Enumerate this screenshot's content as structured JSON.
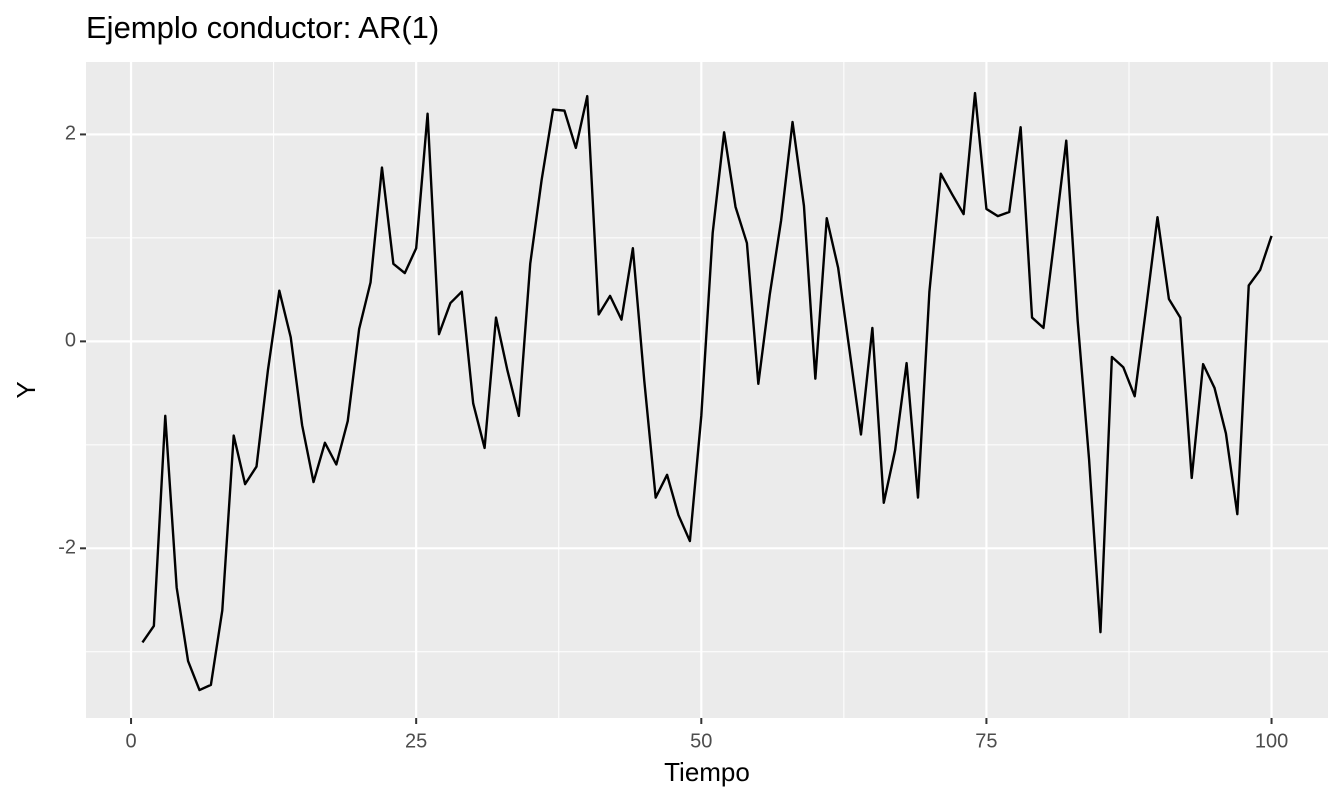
{
  "chart_data": {
    "type": "line",
    "title": "Ejemplo conductor: AR(1)",
    "x_label": "Tiempo",
    "y_label": "Y",
    "x": [
      1,
      2,
      3,
      4,
      5,
      6,
      7,
      8,
      9,
      10,
      11,
      12,
      13,
      14,
      15,
      16,
      17,
      18,
      19,
      20,
      21,
      22,
      23,
      24,
      25,
      26,
      27,
      28,
      29,
      30,
      31,
      32,
      33,
      34,
      35,
      36,
      37,
      38,
      39,
      40,
      41,
      42,
      43,
      44,
      45,
      46,
      47,
      48,
      49,
      50,
      51,
      52,
      53,
      54,
      55,
      56,
      57,
      58,
      59,
      60,
      61,
      62,
      63,
      64,
      65,
      66,
      67,
      68,
      69,
      70,
      71,
      72,
      73,
      74,
      75,
      76,
      77,
      78,
      79,
      80,
      81,
      82,
      83,
      84,
      85,
      86,
      87,
      88,
      89,
      90,
      91,
      92,
      93,
      94,
      95,
      96,
      97,
      98,
      99,
      100
    ],
    "series": [
      {
        "name": "Y",
        "color": "#000000",
        "values": [
          -2.91,
          -2.75,
          -0.72,
          -2.38,
          -3.09,
          -3.37,
          -3.32,
          -2.6,
          -0.91,
          -1.38,
          -1.21,
          -0.28,
          0.49,
          0.04,
          -0.81,
          -1.36,
          -0.98,
          -1.19,
          -0.77,
          0.12,
          0.57,
          1.68,
          0.75,
          0.66,
          0.9,
          2.2,
          0.07,
          0.37,
          0.48,
          -0.6,
          -1.03,
          0.23,
          -0.28,
          -0.72,
          0.75,
          1.56,
          2.24,
          2.23,
          1.87,
          2.37,
          0.26,
          0.44,
          0.21,
          0.9,
          -0.38,
          -1.51,
          -1.29,
          -1.68,
          -1.93,
          -0.72,
          1.05,
          2.02,
          1.3,
          0.95,
          -0.41,
          0.45,
          1.17,
          2.12,
          1.31,
          -0.36,
          1.19,
          0.71,
          -0.09,
          -0.9,
          0.13,
          -1.56,
          -1.05,
          -0.21,
          -1.51,
          0.48,
          1.62,
          1.42,
          1.23,
          2.4,
          1.28,
          1.21,
          1.25,
          2.07,
          0.23,
          0.13,
          1.02,
          1.94,
          0.2,
          -1.14,
          -2.81,
          -0.15,
          -0.25,
          -0.53,
          0.32,
          1.2,
          0.41,
          0.23,
          -1.32,
          -0.22,
          -0.45,
          -0.89,
          -1.67,
          0.54,
          0.69,
          1.02
        ]
      }
    ],
    "xlim": [
      -3.95,
      104.95
    ],
    "ylim": [
      -3.64,
      2.7
    ],
    "xticks": [
      0,
      25,
      50,
      75,
      100
    ],
    "yticks": [
      -2,
      0,
      2
    ],
    "x_minor_ticks": [
      12.5,
      37.5,
      62.5,
      87.5
    ],
    "y_minor_ticks": [
      -3,
      -1,
      1
    ],
    "grid": true,
    "panel_color": "#ebebeb"
  }
}
